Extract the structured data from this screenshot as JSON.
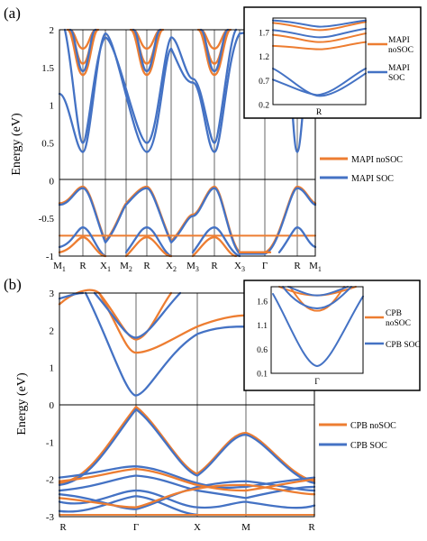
{
  "chart_data": [
    {
      "type": "line",
      "panel_label": "(a)",
      "ylabel": "Energy (eV)",
      "ylim": [
        -1,
        2
      ],
      "yticks": [
        "2",
        "1.5",
        "1",
        "0.5",
        "0",
        "-0.5",
        "-1"
      ],
      "kpoints": [
        {
          "label": "M",
          "sub": "1"
        },
        {
          "label": "R",
          "sub": ""
        },
        {
          "label": "X",
          "sub": "1"
        },
        {
          "label": "M",
          "sub": "2"
        },
        {
          "label": "R",
          "sub": ""
        },
        {
          "label": "X",
          "sub": "2"
        },
        {
          "label": "M",
          "sub": "3"
        },
        {
          "label": "R",
          "sub": ""
        },
        {
          "label": "X",
          "sub": "3"
        },
        {
          "label": "Γ",
          "sub": ""
        },
        {
          "label": "R",
          "sub": ""
        },
        {
          "label": "M",
          "sub": "1"
        }
      ],
      "legend": [
        "MAPI noSOC",
        "MAPI SOC"
      ],
      "colors": {
        "noSOC": "#ED7D31",
        "SOC": "#4472C4"
      },
      "series": [
        {
          "name": "MAPI noSOC",
          "conduction_minima_at_R": [
            1.4,
            1.5,
            1.75
          ],
          "valence_max_at_R": -0.1
        },
        {
          "name": "MAPI SOC",
          "conduction_minima_at_R": [
            0.38,
            0.5,
            1.4
          ],
          "valence_max_at_R": -0.1
        }
      ],
      "inset": {
        "yticks": [
          "1.7",
          "1.2",
          "0.7",
          "0.2"
        ],
        "ylim": [
          0.2,
          2.0
        ],
        "xlabel": "R",
        "legend": [
          "MAPI noSOC",
          "MAPI SOC"
        ]
      }
    },
    {
      "type": "line",
      "panel_label": "(b)",
      "ylabel": "Energy (eV)",
      "ylim": [
        -3,
        3
      ],
      "yticks": [
        "3",
        "2",
        "1",
        "0",
        "-1",
        "-2",
        "-3"
      ],
      "kpoints": [
        {
          "label": "R",
          "sub": ""
        },
        {
          "label": "Γ",
          "sub": ""
        },
        {
          "label": "X",
          "sub": ""
        },
        {
          "label": "M",
          "sub": ""
        },
        {
          "label": "R",
          "sub": ""
        }
      ],
      "legend": [
        "CPB noSOC",
        "CPB SOC"
      ],
      "colors": {
        "noSOC": "#ED7D31",
        "SOC": "#4472C4"
      },
      "series": [
        {
          "name": "CPB noSOC",
          "conduction_min_at_Gamma": 1.4,
          "valence_max_at_Gamma": -0.05
        },
        {
          "name": "CPB SOC",
          "conduction_min_at_Gamma": 0.25,
          "valence_max_at_Gamma": -0.1
        }
      ],
      "inset": {
        "yticks": [
          "1.6",
          "1.1",
          "0.6",
          "0.1"
        ],
        "ylim": [
          0.1,
          1.9
        ],
        "xlabel": "Γ",
        "legend": [
          "CPB noSOC",
          "CPB SOC"
        ]
      }
    }
  ]
}
